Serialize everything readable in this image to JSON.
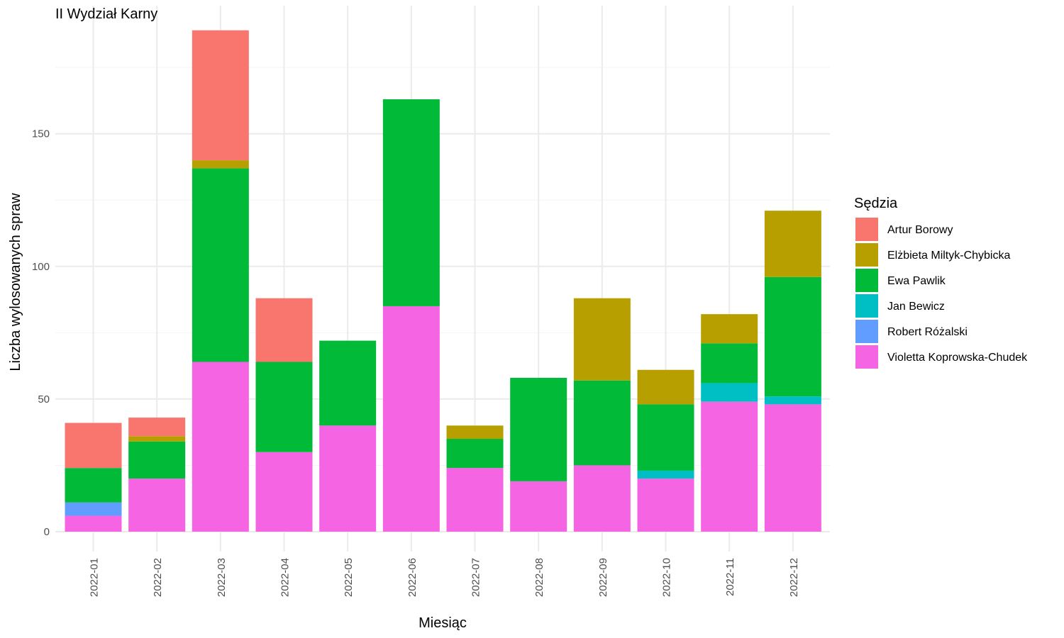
{
  "chart_data": {
    "type": "bar",
    "stacked": true,
    "title": "II Wydział Karny",
    "xlabel": "Miesiąc",
    "ylabel": "Liczba wylosowanych spraw",
    "ylim": [
      0,
      190
    ],
    "yticks": [
      0,
      50,
      100,
      150
    ],
    "grid": true,
    "legend_position": "right",
    "legend_title": "Sędzia",
    "categories": [
      "2022-01",
      "2022-02",
      "2022-03",
      "2022-04",
      "2022-05",
      "2022-06",
      "2022-07",
      "2022-08",
      "2022-09",
      "2022-10",
      "2022-11",
      "2022-12"
    ],
    "series": [
      {
        "name": "Violetta Koprowska-Chudek",
        "color": "#F564E3",
        "values": [
          6,
          20,
          64,
          30,
          40,
          85,
          24,
          19,
          25,
          20,
          49,
          48
        ]
      },
      {
        "name": "Robert Różalski",
        "color": "#619CFF",
        "values": [
          5,
          0,
          0,
          0,
          0,
          0,
          0,
          0,
          0,
          0,
          0,
          0
        ]
      },
      {
        "name": "Jan Bewicz",
        "color": "#00BFC4",
        "values": [
          0,
          0,
          0,
          0,
          0,
          0,
          0,
          0,
          0,
          3,
          7,
          3
        ]
      },
      {
        "name": "Ewa Pawlik",
        "color": "#00BA38",
        "values": [
          13,
          14,
          73,
          34,
          32,
          78,
          11,
          39,
          32,
          25,
          15,
          45
        ]
      },
      {
        "name": "Elżbieta Miltyk-Chybicka",
        "color": "#B79F00",
        "values": [
          0,
          2,
          3,
          0,
          0,
          0,
          5,
          0,
          31,
          13,
          11,
          25
        ]
      },
      {
        "name": "Artur Borowy",
        "color": "#F8766D",
        "values": [
          17,
          7,
          49,
          24,
          0,
          0,
          0,
          0,
          0,
          0,
          0,
          0
        ]
      }
    ],
    "legend_order": [
      "Artur Borowy",
      "Elżbieta Miltyk-Chybicka",
      "Ewa Pawlik",
      "Jan Bewicz",
      "Robert Różalski",
      "Violetta Koprowska-Chudek"
    ]
  }
}
